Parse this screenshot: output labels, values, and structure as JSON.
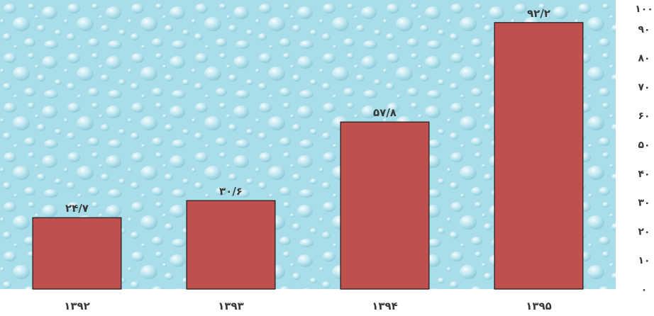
{
  "chart_data": {
    "type": "bar",
    "title": "",
    "xlabel": "",
    "ylabel": "",
    "categories": [
      "۱۳۹۲",
      "۱۳۹۳",
      "۱۳۹۴",
      "۱۳۹۵"
    ],
    "values": [
      24.7,
      30.6,
      57.8,
      92.2
    ],
    "value_labels": [
      "۲۴/۷",
      "۳۰/۶",
      "۵۷/۸",
      "۹۲/۲"
    ],
    "ylim": [
      0,
      100
    ],
    "y_ticks": [
      0,
      10,
      20,
      30,
      40,
      50,
      60,
      70,
      80,
      90,
      100
    ],
    "y_tick_labels": [
      "۰",
      "۱۰",
      "۲۰",
      "۳۰",
      "۴۰",
      "۵۰",
      "۶۰",
      "۷۰",
      "۸۰",
      "۹۰",
      "۱۰۰"
    ],
    "y_axis_side": "right",
    "grid": false,
    "legend": "none",
    "bar_color": "#c0504d",
    "bar_edge_color": "#1a1a1a",
    "plot_background": "water-droplet texture, light aqua",
    "plot_background_color": "#aee0ec"
  }
}
